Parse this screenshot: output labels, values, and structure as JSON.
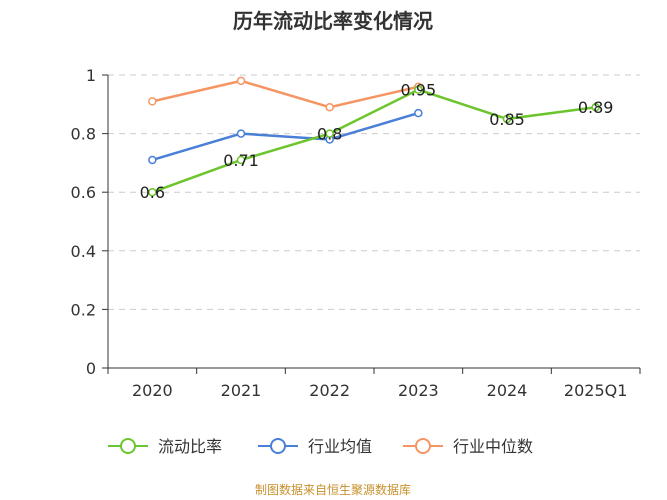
{
  "chart_data": {
    "type": "line",
    "title": "历年流动比率变化情况",
    "categories": [
      "2020",
      "2021",
      "2022",
      "2023",
      "2024",
      "2025Q1"
    ],
    "ylim": [
      0,
      1
    ],
    "yticks": [
      "0",
      "0.2",
      "0.4",
      "0.6",
      "0.8",
      "1"
    ],
    "grid": true,
    "legend_position": "bottom",
    "series": [
      {
        "name": "流动比率",
        "color": "#6cc52d",
        "values": [
          0.6,
          0.71,
          0.8,
          0.95,
          0.85,
          0.89
        ],
        "labels": [
          "0.6",
          "0.71",
          "0.8",
          "0.95",
          "0.85",
          "0.89"
        ]
      },
      {
        "name": "行业均值",
        "color": "#4a7fd8",
        "values": [
          0.71,
          0.8,
          0.78,
          0.87,
          null,
          null
        ]
      },
      {
        "name": "行业中位数",
        "color": "#f59563",
        "values": [
          0.91,
          0.98,
          0.89,
          0.96,
          null,
          null
        ]
      }
    ]
  },
  "source_note": "制图数据来自恒生聚源数据库"
}
